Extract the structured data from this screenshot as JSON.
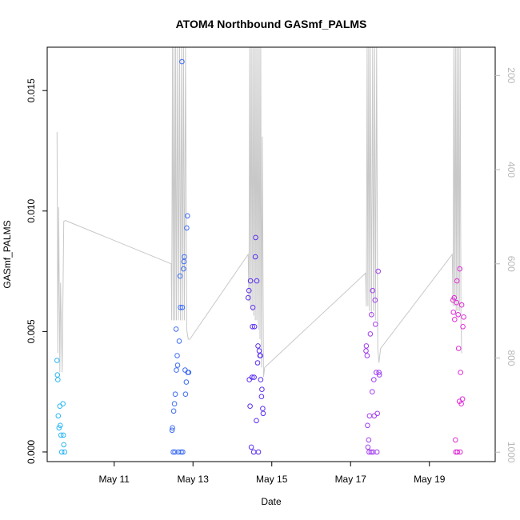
{
  "chart_data": {
    "type": "scatter",
    "title": "ATOM4 Northbound GASmf_PALMS",
    "xlabel": "Date",
    "ylabel": "GASmf_PALMS",
    "x_unit": "day of May",
    "xlim": [
      9.3,
      20.67
    ],
    "ylim": [
      -0.0004,
      0.0168
    ],
    "x_ticks": [
      11,
      13,
      15,
      17,
      19
    ],
    "x_tick_labels": [
      "May 11",
      "May 13",
      "May 15",
      "May 17",
      "May 19"
    ],
    "y_ticks": [
      0.0,
      0.005,
      0.01,
      0.015
    ],
    "y_tick_labels": [
      "0.000",
      "0.005",
      "0.010",
      "0.015"
    ],
    "y2_lim": [
      1020,
      140
    ],
    "y2_ticks": [
      200,
      400,
      600,
      800,
      1000
    ],
    "y2_tick_labels": [
      "200",
      "400",
      "600",
      "800",
      "1000"
    ],
    "grid": false,
    "colors": {
      "line": "#c8c8c8",
      "frame": "#000000",
      "y2_axis": "#b8b8b8"
    },
    "series": [
      {
        "color": "#29b6f6",
        "x": [
          9.55,
          9.56,
          9.57,
          9.58,
          9.6,
          9.62,
          9.63,
          9.65,
          9.67,
          9.7,
          9.71,
          9.72,
          9.74
        ],
        "y": [
          0.0038,
          0.0032,
          0.003,
          0.0015,
          0.001,
          0.0019,
          0.0011,
          0.0007,
          0.0,
          0.002,
          0.0007,
          0.0003,
          0.0
        ]
      },
      {
        "color": "#3d6cf5",
        "x": [
          12.47,
          12.48,
          12.5,
          12.51,
          12.53,
          12.54,
          12.55,
          12.57,
          12.58,
          12.6,
          12.61,
          12.63,
          12.65,
          12.67,
          12.68,
          12.7,
          12.72,
          12.73,
          12.74,
          12.76,
          12.77,
          12.78,
          12.8,
          12.81,
          12.83,
          12.84,
          12.86,
          12.87,
          12.89
        ],
        "y": [
          0.0009,
          0.001,
          0.0,
          0.0017,
          0.002,
          0.0,
          0.0024,
          0.0051,
          0.0034,
          0.004,
          0.0036,
          0.0,
          0.0046,
          0.0073,
          0.006,
          0.0,
          0.0162,
          0.006,
          0.0,
          0.0076,
          0.0079,
          0.0081,
          0.0034,
          0.0024,
          0.0029,
          0.0093,
          0.0098,
          0.0033,
          0.0033
        ]
      },
      {
        "color": "#5b2ff2",
        "x": [
          14.4,
          14.42,
          14.43,
          14.45,
          14.46,
          14.48,
          14.5,
          14.51,
          14.52,
          14.54,
          14.55,
          14.56,
          14.58,
          14.59,
          14.61,
          14.62,
          14.64,
          14.65,
          14.66,
          14.68,
          14.7,
          14.71,
          14.72,
          14.74,
          14.75,
          14.77,
          14.78
        ],
        "y": [
          0.0064,
          0.0067,
          0.003,
          0.0019,
          0.0071,
          0.0002,
          0.0031,
          0.0052,
          0.006,
          0.0,
          0.0031,
          0.0052,
          0.0081,
          0.0089,
          0.0013,
          0.0071,
          0.0037,
          0.0044,
          0.0,
          0.0042,
          0.004,
          0.004,
          0.003,
          0.0023,
          0.0026,
          0.0018,
          0.0016
        ]
      },
      {
        "color": "#a03cf0",
        "x": [
          17.39,
          17.4,
          17.42,
          17.43,
          17.44,
          17.46,
          17.47,
          17.48,
          17.5,
          17.52,
          17.53,
          17.55,
          17.56,
          17.57,
          17.59,
          17.6,
          17.62,
          17.63,
          17.65,
          17.67,
          17.68,
          17.7,
          17.72,
          17.73
        ],
        "y": [
          0.0042,
          0.0044,
          0.004,
          0.0011,
          0.0002,
          0.0005,
          0.0,
          0.0015,
          0.0049,
          0.0,
          0.0057,
          0.0025,
          0.0067,
          0.0,
          0.003,
          0.0015,
          0.0063,
          0.0053,
          0.0033,
          0.0,
          0.0016,
          0.0075,
          0.0033,
          0.0032
        ]
      },
      {
        "color": "#e02bd6",
        "x": [
          19.6,
          19.61,
          19.63,
          19.64,
          19.66,
          19.67,
          19.69,
          19.7,
          19.71,
          19.73,
          19.74,
          19.76,
          19.77,
          19.78,
          19.79,
          19.81,
          19.82,
          19.84,
          19.85,
          19.87
        ],
        "y": [
          0.0063,
          0.0058,
          0.0064,
          0.0055,
          0.0005,
          0.0,
          0.0062,
          0.0071,
          0.0,
          0.0057,
          0.0043,
          0.0021,
          0.0076,
          0.0,
          0.0033,
          0.002,
          0.0061,
          0.0022,
          0.0052,
          0.0056
        ]
      }
    ],
    "line_y2": {
      "axis": "right",
      "color": "#c8c8c8",
      "x": [
        9.55,
        9.57,
        9.59,
        9.62,
        9.64,
        9.68,
        9.72,
        9.76,
        12.45,
        12.46,
        12.48,
        12.5,
        12.52,
        12.54,
        12.56,
        12.58,
        12.61,
        12.63,
        12.66,
        12.68,
        12.71,
        12.73,
        12.76,
        12.78,
        12.81,
        12.84,
        12.88,
        12.92,
        14.4,
        14.42,
        14.44,
        14.46,
        14.48,
        14.5,
        14.52,
        14.54,
        14.56,
        14.58,
        14.6,
        14.62,
        14.64,
        14.66,
        14.68,
        14.7,
        14.72,
        14.74,
        14.76,
        14.79,
        14.82,
        17.38,
        17.4,
        17.42,
        17.44,
        17.46,
        17.48,
        17.5,
        17.53,
        17.56,
        17.58,
        17.61,
        17.63,
        17.66,
        17.69,
        17.72,
        17.76,
        19.58,
        19.6,
        19.62,
        19.64,
        19.66,
        19.68,
        19.7,
        19.72,
        19.74,
        19.76,
        19.78,
        19.8,
        19.82
      ],
      "y": [
        320,
        790,
        480,
        830,
        640,
        830,
        510,
        508,
        600,
        720,
        120,
        720,
        120,
        720,
        120,
        720,
        120,
        720,
        120,
        720,
        120,
        720,
        120,
        720,
        120,
        740,
        760,
        760,
        580,
        680,
        120,
        690,
        120,
        700,
        120,
        710,
        120,
        720,
        120,
        720,
        120,
        740,
        120,
        760,
        120,
        820,
        330,
        840,
        820,
        620,
        690,
        120,
        690,
        120,
        700,
        120,
        710,
        120,
        700,
        120,
        720,
        120,
        780,
        810,
        780,
        580,
        690,
        120,
        690,
        120,
        700,
        120,
        700,
        120,
        700,
        120,
        720,
        790
      ]
    }
  }
}
